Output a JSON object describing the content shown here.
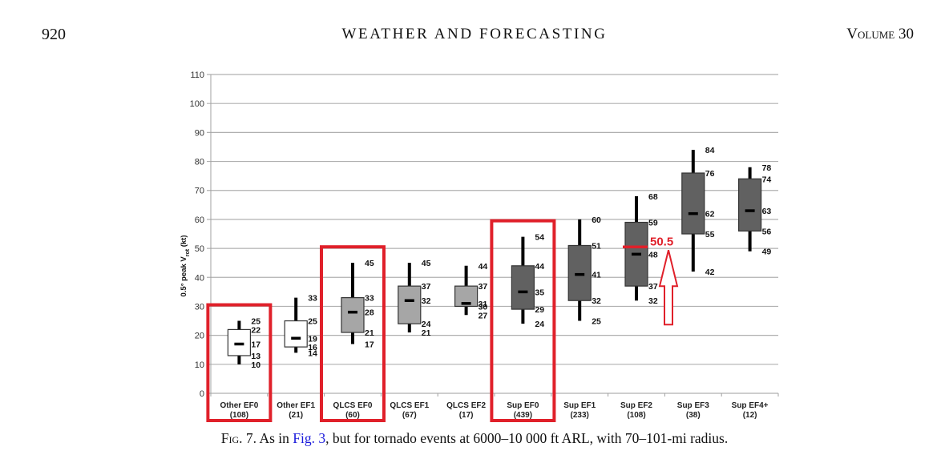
{
  "header": {
    "page_number": "920",
    "journal": "WEATHER AND FORECASTING",
    "volume": "Volume 30"
  },
  "caption": {
    "prefix": "Fig. 7.",
    "text_before_link": " As in ",
    "link": "Fig. 3",
    "text_after_link": ", but for tornado events at 6000–10 000 ft ARL, with 70–101-mi radius."
  },
  "chart_data": {
    "type": "boxplot",
    "title": "",
    "xlabel": "",
    "ylabel": "0.5° peak Vrot (kt)",
    "ylim": [
      0,
      110
    ],
    "yticks": [
      0,
      10,
      20,
      30,
      40,
      50,
      60,
      70,
      80,
      90,
      100,
      110
    ],
    "grid": true,
    "legend": "none",
    "categories": [
      {
        "name": "Other EF0",
        "n": "(108)"
      },
      {
        "name": "Other EF1",
        "n": "(21)"
      },
      {
        "name": "QLCS EF0",
        "n": "(60)"
      },
      {
        "name": "QLCS EF1",
        "n": "(67)"
      },
      {
        "name": "QLCS EF2",
        "n": "(17)"
      },
      {
        "name": "Sup EF0",
        "n": "(439)"
      },
      {
        "name": "Sup EF1",
        "n": "(233)"
      },
      {
        "name": "Sup EF2",
        "n": "(108)"
      },
      {
        "name": "Sup EF3",
        "n": "(38)"
      },
      {
        "name": "Sup EF4+",
        "n": "(12)"
      }
    ],
    "boxes": [
      {
        "max": 25,
        "q3": 22,
        "median": 17,
        "q1": 13,
        "min": 10,
        "fill": "#ffffff"
      },
      {
        "max": 33,
        "q3": 25,
        "median": 19,
        "q1": 16,
        "min": 14,
        "fill": "#ffffff"
      },
      {
        "max": 45,
        "q3": 33,
        "median": 28,
        "q1": 21,
        "min": 17,
        "fill": "#a6a6a6"
      },
      {
        "max": 45,
        "q3": 37,
        "median": 32,
        "q1": 24,
        "min": 21,
        "fill": "#a6a6a6"
      },
      {
        "max": 44,
        "q3": 37,
        "median": 31,
        "q1": 30,
        "min": 27,
        "fill": "#a6a6a6"
      },
      {
        "max": 54,
        "q3": 44,
        "median": 35,
        "q1": 29,
        "min": 24,
        "fill": "#616161"
      },
      {
        "max": 60,
        "q3": 51,
        "median": 41,
        "q1": 32,
        "min": 25,
        "fill": "#616161"
      },
      {
        "max": 68,
        "q3": 59,
        "median": 48,
        "q1": 37,
        "min": 32,
        "fill": "#616161"
      },
      {
        "max": 84,
        "q3": 76,
        "median": 62,
        "q1": 55,
        "min": 42,
        "fill": "#616161"
      },
      {
        "max": 78,
        "q3": 74,
        "median": 63,
        "q1": 56,
        "min": 49,
        "fill": "#616161"
      }
    ],
    "annotations": {
      "highlighted_categories": [
        "Other EF0",
        "QLCS EF0",
        "Sup EF0"
      ],
      "highlight_color": "#e0202a",
      "marker_line": {
        "category": "Sup EF2",
        "value": 50.5,
        "label": "50.5"
      },
      "arrow": {
        "points_to": "50.5",
        "direction": "up"
      }
    }
  }
}
